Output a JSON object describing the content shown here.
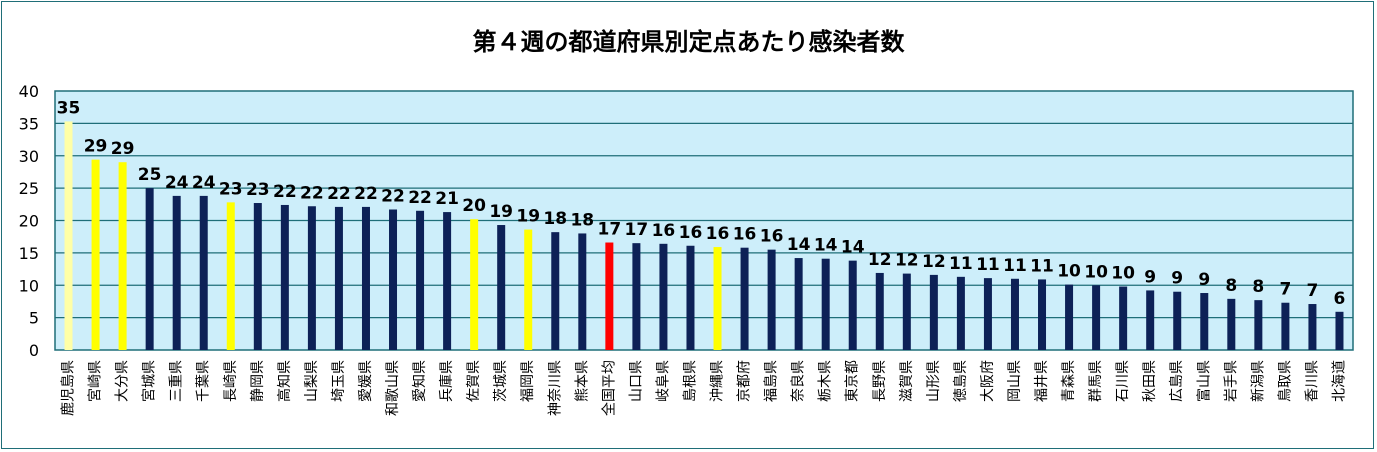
{
  "chart_data": {
    "type": "bar",
    "title": "第４週の都道府県別定点あたり感染者数",
    "xlabel": "",
    "ylabel": "",
    "ylim": [
      0,
      40
    ],
    "yticks": [
      0,
      5,
      10,
      15,
      20,
      25,
      30,
      35,
      40
    ],
    "grid": true,
    "plot_background": "#cdeefa",
    "colors": {
      "default": "#0d2157",
      "highlight_yellow": "#ffff00",
      "highlight_light_yellow": "#ffffa6",
      "national_average": "#ff0000"
    },
    "categories": [
      "鹿児島県",
      "宮崎県",
      "大分県",
      "宮城県",
      "三重県",
      "千葉県",
      "長崎県",
      "静岡県",
      "高知県",
      "山梨県",
      "埼玉県",
      "愛媛県",
      "和歌山県",
      "愛知県",
      "兵庫県",
      "佐賀県",
      "茨城県",
      "福岡県",
      "神奈川県",
      "熊本県",
      "全国平均",
      "山口県",
      "岐阜県",
      "島根県",
      "沖縄県",
      "京都府",
      "福島県",
      "奈良県",
      "栃木県",
      "東京都",
      "長野県",
      "滋賀県",
      "山形県",
      "徳島県",
      "大阪府",
      "岡山県",
      "福井県",
      "青森県",
      "群馬県",
      "石川県",
      "秋田県",
      "広島県",
      "富山県",
      "岩手県",
      "新潟県",
      "鳥取県",
      "香川県",
      "北海道"
    ],
    "values": [
      35.3,
      29.4,
      29.0,
      25.0,
      23.8,
      23.8,
      22.8,
      22.7,
      22.4,
      22.2,
      22.1,
      22.1,
      21.7,
      21.5,
      21.3,
      20.2,
      19.3,
      18.6,
      18.2,
      18.0,
      16.6,
      16.5,
      16.4,
      16.1,
      15.9,
      15.8,
      15.5,
      14.2,
      14.1,
      13.8,
      11.9,
      11.8,
      11.6,
      11.3,
      11.1,
      11.0,
      10.9,
      10.1,
      10.0,
      9.8,
      9.2,
      9.0,
      8.8,
      7.9,
      7.7,
      7.3,
      7.1,
      5.9
    ],
    "value_labels": [
      "35",
      "29",
      "29",
      "25",
      "24",
      "24",
      "23",
      "23",
      "22",
      "22",
      "22",
      "22",
      "22",
      "22",
      "21",
      "20",
      "19",
      "19",
      "18",
      "18",
      "17",
      "17",
      "16",
      "16",
      "16",
      "16",
      "16",
      "14",
      "14",
      "14",
      "12",
      "12",
      "12",
      "11",
      "11",
      "11",
      "11",
      "10",
      "10",
      "10",
      "9",
      "9",
      "9",
      "8",
      "8",
      "7",
      "7",
      "6"
    ],
    "bar_colors": [
      "highlight_light_yellow",
      "highlight_yellow",
      "highlight_yellow",
      "default",
      "default",
      "default",
      "highlight_yellow",
      "default",
      "default",
      "default",
      "default",
      "default",
      "default",
      "default",
      "default",
      "highlight_yellow",
      "default",
      "highlight_yellow",
      "default",
      "default",
      "national_average",
      "default",
      "default",
      "default",
      "highlight_yellow",
      "default",
      "default",
      "default",
      "default",
      "default",
      "default",
      "default",
      "default",
      "default",
      "default",
      "default",
      "default",
      "default",
      "default",
      "default",
      "default",
      "default",
      "default",
      "default",
      "default",
      "default",
      "default",
      "default"
    ]
  }
}
